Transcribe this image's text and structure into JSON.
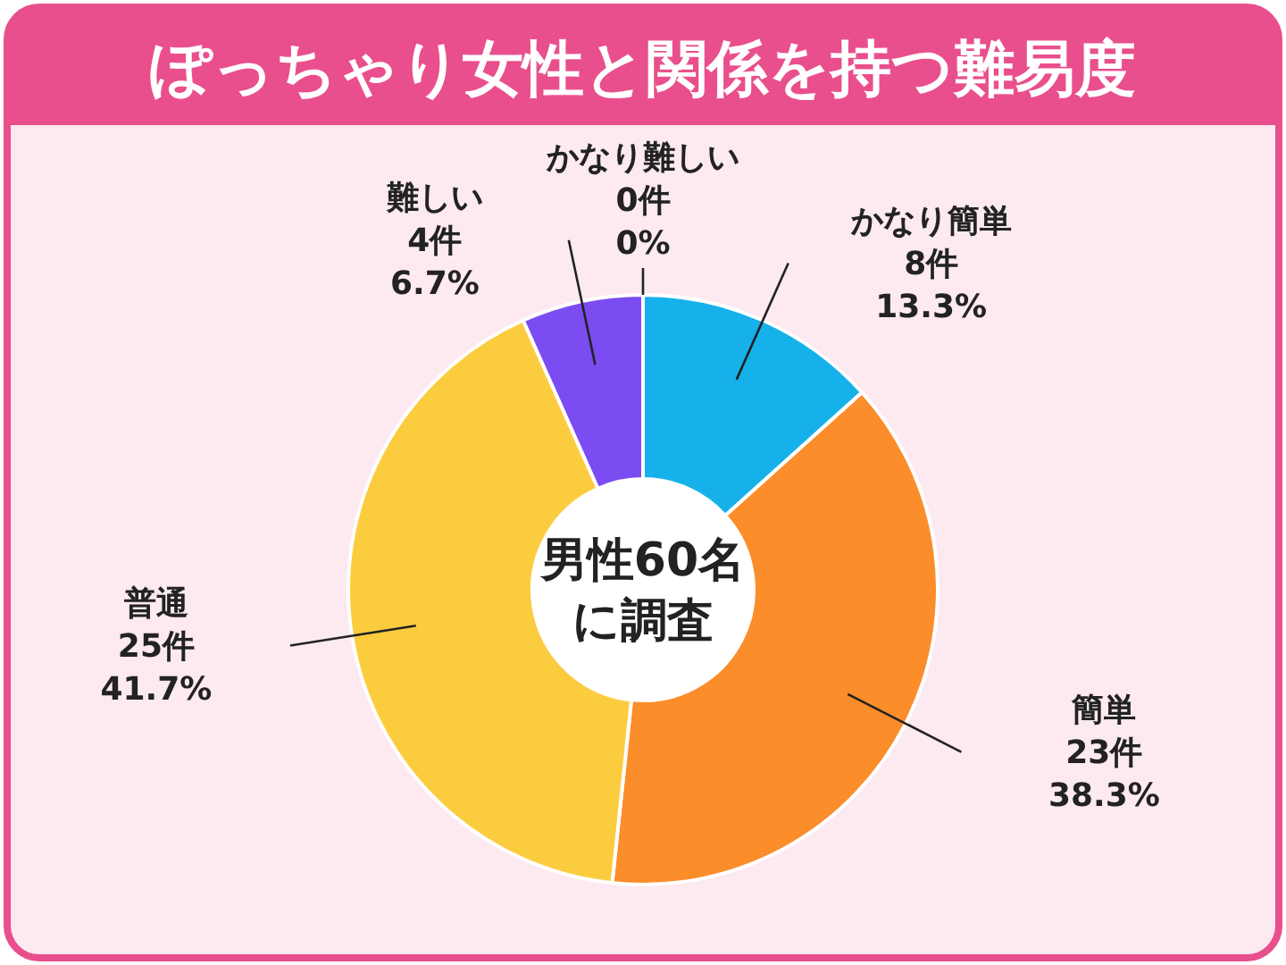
{
  "chart_data": {
    "type": "donut",
    "title": "ぽっちゃり女性と関係を持つ難易度",
    "categories": [
      "かなり簡単",
      "簡単",
      "普通",
      "難しい",
      "かなり難しい"
    ],
    "values": [
      8,
      23,
      25,
      4,
      0
    ],
    "colors": [
      "#16b1ea",
      "#fb8d2b",
      "#fccc3f",
      "#7b4cf2",
      null
    ],
    "value_labels": [
      "8件\n13.3%",
      "23件\n38.3%",
      "25件\n41.7%",
      "4件\n6.7%",
      "0件\n0%"
    ],
    "annotations": [
      "男性60名",
      "に調査"
    ]
  }
}
